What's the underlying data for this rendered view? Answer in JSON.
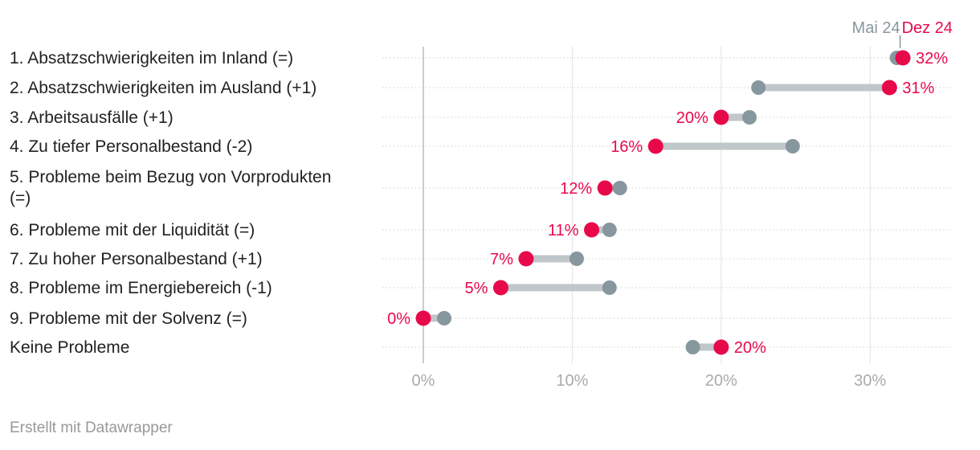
{
  "chart_data": {
    "type": "range-dot",
    "title": "",
    "xlabel": "",
    "ylabel": "",
    "xlim": [
      -2.8,
      35.5
    ],
    "x_ticks": [
      0,
      10,
      20,
      30
    ],
    "x_tick_labels": [
      "0%",
      "10%",
      "20%",
      "30%"
    ],
    "grid": true,
    "legend": {
      "placement": "top-right",
      "entries": [
        {
          "name": "Mai 24",
          "color": "#87979e"
        },
        {
          "name": "Dez 24",
          "color": "#e8094b"
        }
      ]
    },
    "categories": [
      "1. Absatzschwierigkeiten im Inland (=)",
      "2. Absatzschwierigkeiten im Ausland (+1)",
      "3. Arbeitsausfälle (+1)",
      "4. Zu tiefer Personalbestand (-2)",
      "5. Probleme beim Bezug von Vorprodukten (=)",
      "6. Probleme mit der Liquidität (=)",
      "7. Zu hoher Personalbestand (+1)",
      "8. Probleme im Energiebereich (-1)",
      "9. Probleme mit der Solvenz (=)",
      "Keine Probleme"
    ],
    "series": [
      {
        "name": "Mai 24",
        "values": [
          31.8,
          22.5,
          21.9,
          24.8,
          13.2,
          12.5,
          10.3,
          12.5,
          1.4,
          18.1
        ]
      },
      {
        "name": "Dez 24",
        "values": [
          32.2,
          31.3,
          20.0,
          15.6,
          12.2,
          11.3,
          6.9,
          5.2,
          0.0,
          20.0
        ]
      }
    ],
    "data_labels": [
      "32%",
      "31%",
      "20%",
      "16%",
      "12%",
      "11%",
      "7%",
      "5%",
      "0%",
      "20%"
    ]
  },
  "footer": "Erstellt mit Datawrapper",
  "colors": {
    "range_bar": "#bfc7ca",
    "grid": "#e2e2e2",
    "zero_line": "#bbbbbb"
  }
}
